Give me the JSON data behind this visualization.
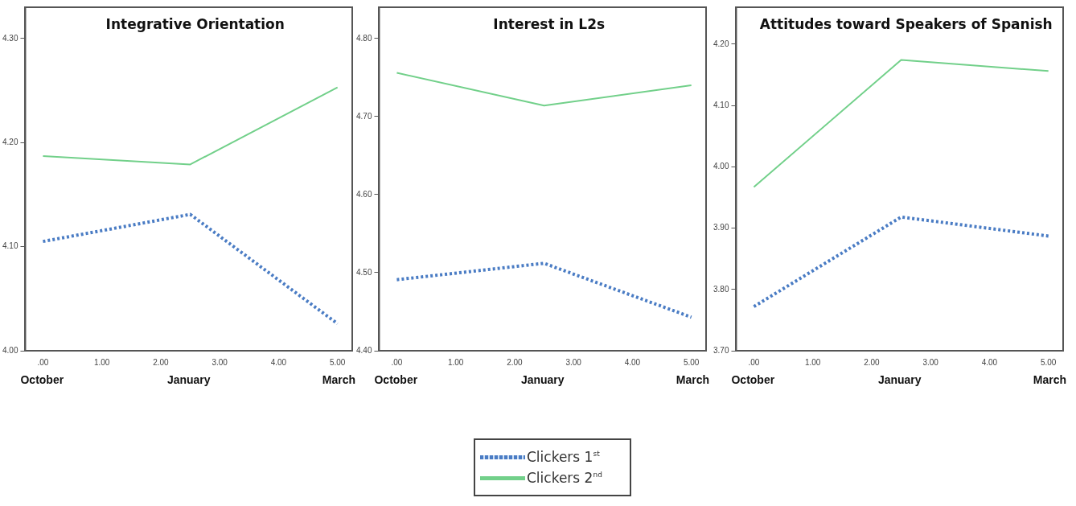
{
  "chart_data": [
    {
      "type": "line",
      "title": "Integrative Orientation",
      "x": [
        0,
        2.5,
        5
      ],
      "series": [
        {
          "name": "Clickers 1$^{st}$",
          "color": "#4a7cc4",
          "line_style": "dotted",
          "values": [
            4.105,
            4.131,
            4.026
          ]
        },
        {
          "name": "Clickers 2$^{nd}$",
          "color": "#72d08a",
          "line_style": "solid",
          "values": [
            4.187,
            4.179,
            4.253
          ]
        }
      ],
      "xlim": [
        -0.3,
        5.25
      ],
      "xticks": [
        {
          "value": 0,
          "label": ".00"
        },
        {
          "value": 1,
          "label": "1.00"
        },
        {
          "value": 2,
          "label": "2.00"
        },
        {
          "value": 3,
          "label": "3.00"
        },
        {
          "value": 4,
          "label": "4.00"
        },
        {
          "value": 5,
          "label": "5.00"
        }
      ],
      "ylim": [
        4.0,
        4.33
      ],
      "yticks": [
        {
          "value": 4.0,
          "label": "4.00"
        },
        {
          "value": 4.1,
          "label": "4.10"
        },
        {
          "value": 4.2,
          "label": "4.20"
        },
        {
          "value": 4.3,
          "label": "4.30"
        }
      ],
      "annotations": [
        "October",
        "January",
        "March"
      ],
      "grid": false,
      "marker": "none",
      "legend": "bottom"
    },
    {
      "type": "line",
      "title": "Interest in L2s",
      "x": [
        0,
        2.5,
        5
      ],
      "series": [
        {
          "color": "#4a7cc4",
          "line_style": "dotted",
          "values": [
            4.491,
            4.512,
            4.443
          ]
        },
        {
          "color": "#72d08a",
          "line_style": "solid",
          "values": [
            4.756,
            4.714,
            4.74
          ]
        }
      ],
      "xlim": [
        -0.3,
        5.25
      ],
      "xticks": [
        {
          "value": 0,
          "label": ".00"
        },
        {
          "value": 1,
          "label": "1.00"
        },
        {
          "value": 2,
          "label": "2.00"
        },
        {
          "value": 3,
          "label": "3.00"
        },
        {
          "value": 4,
          "label": "4.00"
        },
        {
          "value": 5,
          "label": "5.00"
        }
      ],
      "ylim": [
        4.4,
        4.84
      ],
      "yticks": [
        {
          "value": 4.4,
          "label": "4.40"
        },
        {
          "value": 4.5,
          "label": "4.50"
        },
        {
          "value": 4.6,
          "label": "4.60"
        },
        {
          "value": 4.7,
          "label": "4.70"
        },
        {
          "value": 4.8,
          "label": "4.80"
        }
      ],
      "annotations": [
        "October",
        "January",
        "March"
      ],
      "grid": false,
      "marker": "none"
    },
    {
      "type": "line",
      "title": "Attitudes toward Speakers of Spanish",
      "x": [
        0,
        2.5,
        5
      ],
      "series": [
        {
          "color": "#4a7cc4",
          "line_style": "dotted",
          "values": [
            3.772,
            3.918,
            3.887
          ]
        },
        {
          "color": "#72d08a",
          "line_style": "solid",
          "values": [
            3.967,
            4.174,
            4.156
          ]
        }
      ],
      "xlim": [
        -0.3,
        5.25
      ],
      "xticks": [
        {
          "value": 0,
          "label": ".00"
        },
        {
          "value": 1,
          "label": "1.00"
        },
        {
          "value": 2,
          "label": "2.00"
        },
        {
          "value": 3,
          "label": "3.00"
        },
        {
          "value": 4,
          "label": "4.00"
        },
        {
          "value": 5,
          "label": "5.00"
        }
      ],
      "ylim": [
        3.7,
        4.26
      ],
      "yticks": [
        {
          "value": 3.7,
          "label": "3.70"
        },
        {
          "value": 3.8,
          "label": "3.80"
        },
        {
          "value": 3.9,
          "label": "3.90"
        },
        {
          "value": 4.0,
          "label": "4.00"
        },
        {
          "value": 4.1,
          "label": "4.10"
        },
        {
          "value": 4.2,
          "label": "4.20"
        }
      ],
      "annotations": [
        "October",
        "January",
        "March"
      ],
      "grid": false,
      "marker": "none"
    }
  ]
}
